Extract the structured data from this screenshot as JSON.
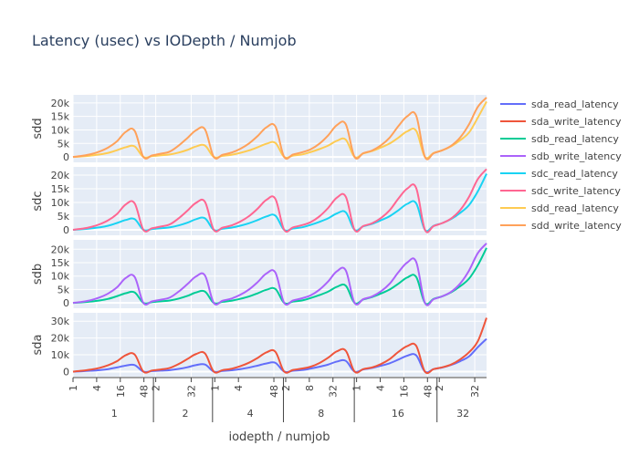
{
  "chart_data": {
    "type": "line",
    "title": "Latency (usec) vs IODepth / Numjob",
    "xlabel": "iodepth / numjob",
    "numjob_groups": [
      "1",
      "2",
      "4",
      "8",
      "16",
      "32"
    ],
    "iodepth_ticks": [
      {
        "pos": 0,
        "label": "1"
      },
      {
        "pos": 2,
        "label": "4"
      },
      {
        "pos": 4,
        "label": "16"
      },
      {
        "pos": 6,
        "label": "48"
      },
      {
        "pos": 7,
        "label": "2"
      },
      {
        "pos": 10,
        "label": "32"
      },
      {
        "pos": 12,
        "label": "1"
      },
      {
        "pos": 14,
        "label": "4"
      },
      {
        "pos": 17,
        "label": "48"
      },
      {
        "pos": 18,
        "label": "2"
      },
      {
        "pos": 20,
        "label": "8"
      },
      {
        "pos": 22,
        "label": "32"
      },
      {
        "pos": 24,
        "label": "1"
      },
      {
        "pos": 26,
        "label": "4"
      },
      {
        "pos": 28,
        "label": "16"
      },
      {
        "pos": 30,
        "label": "48"
      },
      {
        "pos": 31,
        "label": "2"
      },
      {
        "pos": 34,
        "label": "32"
      }
    ],
    "x_range": [
      0,
      35
    ],
    "subplots": [
      {
        "ylabel": "sdd",
        "ylim": [
          -2000,
          23000
        ],
        "yticks": [
          0,
          5000,
          10000,
          15000,
          20000
        ],
        "ytick_labels": [
          "0",
          "5k",
          "10k",
          "15k",
          "20k"
        ],
        "series": [
          "sdd_read_latency",
          "sdd_write_latency"
        ]
      },
      {
        "ylabel": "sdc",
        "ylim": [
          -2000,
          23000
        ],
        "yticks": [
          0,
          5000,
          10000,
          15000,
          20000
        ],
        "ytick_labels": [
          "0",
          "5k",
          "10k",
          "15k",
          "20k"
        ],
        "series": [
          "sdc_read_latency",
          "sdc_write_latency"
        ]
      },
      {
        "ylabel": "sdb",
        "ylim": [
          -2000,
          23500
        ],
        "yticks": [
          0,
          5000,
          10000,
          15000,
          20000
        ],
        "ytick_labels": [
          "0",
          "5k",
          "10k",
          "15k",
          "20k"
        ],
        "series": [
          "sdb_read_latency",
          "sdb_write_latency"
        ]
      },
      {
        "ylabel": "sda",
        "ylim": [
          -3000,
          35000
        ],
        "yticks": [
          0,
          10000,
          20000,
          30000
        ],
        "ytick_labels": [
          "0",
          "10k",
          "20k",
          "30k"
        ],
        "series": [
          "sda_read_latency",
          "sda_write_latency"
        ]
      }
    ],
    "series": [
      {
        "name": "sda_read_latency",
        "color": "#636efa",
        "values": [
          0,
          200,
          500,
          900,
          1500,
          2500,
          3600,
          3900,
          0,
          300,
          600,
          900,
          1600,
          2600,
          3900,
          4200,
          0,
          400,
          800,
          1500,
          2400,
          3600,
          4900,
          5200,
          0,
          500,
          900,
          1800,
          2900,
          4200,
          6000,
          6400,
          0,
          1300,
          2200,
          3500,
          5000,
          7200,
          9500,
          9700,
          0,
          1500,
          2500,
          4000,
          6200,
          9000,
          14500,
          19500
        ]
      },
      {
        "name": "sda_write_latency",
        "color": "#ef553b",
        "values": [
          0,
          500,
          1200,
          2200,
          3800,
          6200,
          9800,
          10200,
          0,
          700,
          1300,
          2200,
          4500,
          7500,
          10500,
          10800,
          0,
          900,
          1700,
          3200,
          5300,
          8200,
          11500,
          11800,
          0,
          1000,
          1800,
          2900,
          5100,
          8300,
          12100,
          12400,
          0,
          1500,
          2500,
          4500,
          7500,
          11800,
          15200,
          15400,
          0,
          1500,
          2600,
          4300,
          7300,
          11500,
          18000,
          32000
        ]
      },
      {
        "name": "sdb_read_latency",
        "color": "#00cc96",
        "values": [
          0,
          200,
          500,
          900,
          1500,
          2500,
          3600,
          3900,
          0,
          300,
          600,
          900,
          1600,
          2600,
          3900,
          4200,
          0,
          400,
          800,
          1500,
          2400,
          3600,
          4900,
          5200,
          0,
          500,
          900,
          1800,
          2900,
          4200,
          6000,
          6400,
          0,
          1300,
          2200,
          3500,
          5000,
          7200,
          9500,
          9700,
          0,
          1500,
          2500,
          4000,
          6200,
          9000,
          14000,
          20500
        ]
      },
      {
        "name": "sdb_write_latency",
        "color": "#ab63fa",
        "values": [
          0,
          400,
          1000,
          2000,
          3500,
          5800,
          9300,
          9700,
          0,
          600,
          1200,
          2000,
          4200,
          7000,
          9900,
          10200,
          0,
          800,
          1600,
          3000,
          5000,
          7800,
          11000,
          11300,
          0,
          900,
          1700,
          2800,
          4900,
          8000,
          11800,
          12100,
          0,
          1400,
          2400,
          4300,
          7200,
          11500,
          15100,
          15300,
          0,
          1400,
          2500,
          4200,
          7200,
          12000,
          18500,
          22200
        ]
      },
      {
        "name": "sdc_read_latency",
        "color": "#19d3f3",
        "values": [
          0,
          200,
          500,
          900,
          1500,
          2500,
          3600,
          3900,
          0,
          300,
          600,
          900,
          1600,
          2600,
          3900,
          4200,
          0,
          400,
          800,
          1500,
          2400,
          3600,
          4900,
          5200,
          0,
          500,
          900,
          1800,
          2900,
          4200,
          6000,
          6400,
          0,
          1300,
          2200,
          3500,
          5000,
          7200,
          9500,
          9700,
          0,
          1500,
          2500,
          4000,
          6200,
          9000,
          14000,
          20500
        ]
      },
      {
        "name": "sdc_write_latency",
        "color": "#ff6692",
        "values": [
          0,
          400,
          1000,
          2000,
          3500,
          5800,
          9300,
          9700,
          0,
          600,
          1200,
          2000,
          4200,
          7000,
          9900,
          10200,
          0,
          800,
          1600,
          3000,
          5000,
          7800,
          11000,
          11300,
          0,
          900,
          1700,
          2800,
          4900,
          8000,
          11800,
          12100,
          0,
          1400,
          2400,
          4300,
          7200,
          11500,
          15100,
          15300,
          0,
          1400,
          2500,
          4200,
          7200,
          12000,
          18500,
          22200
        ]
      },
      {
        "name": "sdd_read_latency",
        "color": "#fecb52",
        "values": [
          0,
          200,
          500,
          900,
          1500,
          2500,
          3600,
          3900,
          0,
          300,
          600,
          900,
          1600,
          2600,
          3900,
          4200,
          0,
          400,
          800,
          1500,
          2400,
          3600,
          4900,
          5200,
          0,
          500,
          900,
          1800,
          2900,
          4200,
          6000,
          6400,
          0,
          1300,
          2200,
          3500,
          5000,
          7200,
          9500,
          9700,
          0,
          1500,
          2500,
          4000,
          6200,
          9000,
          14500,
          20500
        ]
      },
      {
        "name": "sdd_write_latency",
        "color": "#ffa15a",
        "values": [
          0,
          400,
          1000,
          2000,
          3500,
          5800,
          9300,
          9700,
          0,
          600,
          1200,
          2000,
          4200,
          7000,
          9900,
          10200,
          0,
          800,
          1600,
          3000,
          5000,
          7800,
          11000,
          11300,
          0,
          900,
          1700,
          2800,
          4900,
          8000,
          11800,
          12100,
          0,
          1400,
          2400,
          4300,
          7200,
          11500,
          15100,
          15300,
          0,
          1400,
          2500,
          4200,
          7200,
          12000,
          18500,
          22000
        ]
      }
    ],
    "legend": {
      "position": "right"
    },
    "grid": true
  }
}
